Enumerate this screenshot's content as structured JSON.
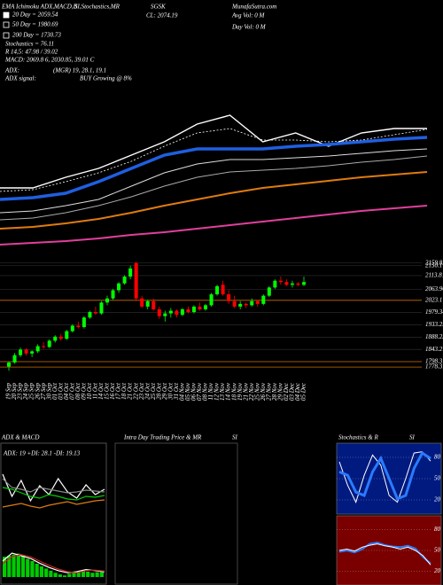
{
  "chart_data": [
    {
      "type": "line",
      "annotations": [
        "EMA Ichimoku ADX,MACD,B",
        "SI,Stochastics,MR",
        "SGSK",
        "MunafaSutra.com",
        "20 Day = 2059.54",
        "50 Day = 1980.69",
        "200 Day = 1730.73",
        "Stochastics = 76.11",
        "R 14,5: 47.98 / 39.02",
        "MACD: 2069.8 6, 2030.85, 39.01 C",
        "ADX:",
        "(MGR) 19, 28.1, 19.1",
        "ADX signal:",
        "BUY Growing @ 8%",
        "CL: 2074.19",
        "Avg Vol: 0 M",
        "Day Vol: 0 M"
      ],
      "ylim": [
        1600,
        2200
      ],
      "series": [
        {
          "color": "#ffffff",
          "width": 1.4,
          "values": [
            1776,
            1776,
            1800,
            1820,
            1850,
            1880,
            1920,
            1940,
            1880,
            1900,
            1870,
            1900,
            1910,
            1910
          ]
        },
        {
          "color": "#ffffff",
          "width": 0.8,
          "dash": true,
          "values": [
            1768,
            1772,
            1790,
            1810,
            1836,
            1870,
            1900,
            1910,
            1884,
            1884,
            1880,
            1884,
            1896,
            1908
          ]
        },
        {
          "color": "#1f5fe0",
          "width": 3.5,
          "values": [
            1750,
            1754,
            1764,
            1790,
            1820,
            1850,
            1864,
            1864,
            1864,
            1870,
            1874,
            1880,
            1886,
            1890
          ]
        },
        {
          "color": "#dddddd",
          "width": 1,
          "values": [
            1720,
            1724,
            1736,
            1750,
            1780,
            1810,
            1830,
            1840,
            1840,
            1844,
            1848,
            1854,
            1860,
            1864
          ]
        },
        {
          "color": "#aaaaaa",
          "width": 1,
          "values": [
            1704,
            1708,
            1720,
            1736,
            1756,
            1780,
            1800,
            1812,
            1816,
            1820,
            1826,
            1834,
            1840,
            1848
          ]
        },
        {
          "color": "#e07b10",
          "width": 2,
          "values": [
            1684,
            1688,
            1696,
            1706,
            1720,
            1736,
            1750,
            1764,
            1776,
            1784,
            1792,
            1800,
            1806,
            1812
          ]
        },
        {
          "color": "#e0409c",
          "width": 2,
          "values": [
            1648,
            1652,
            1656,
            1662,
            1670,
            1676,
            1684,
            1692,
            1700,
            1708,
            1716,
            1724,
            1730,
            1736
          ]
        }
      ]
    },
    {
      "type": "candlestick",
      "up_color": "#00ff00",
      "down_color": "#ff0000",
      "level_color": "#c86a00",
      "ylim": [
        1743,
        2198
      ],
      "yticks": [
        2159.82,
        2150.1,
        2113.81,
        2063.96,
        2023.1,
        1979.34,
        1933.25,
        1888.23,
        1843.27,
        1798.31,
        1778.31
      ],
      "levels": [
        2023.1,
        1798.31,
        1778.31
      ],
      "categories": [
        "19 Sep",
        "20 Sep",
        "23 Sep",
        "24 Sep",
        "25 Sep",
        "26 Sep",
        "27 Sep",
        "30 Sep",
        "01 Oct",
        "03 Oct",
        "04 Oct",
        "07 Oct",
        "08 Oct",
        "09 Oct",
        "10 Oct",
        "11 Oct",
        "14 Oct",
        "15 Oct",
        "16 Oct",
        "17 Oct",
        "18 Oct",
        "21 Oct",
        "22 Oct",
        "23 Oct",
        "24 Oct",
        "25 Oct",
        "28 Oct",
        "29 Oct",
        "30 Oct",
        "31 Oct",
        "04 Nov",
        "05 Nov",
        "06 Nov",
        "07 Nov",
        "08 Nov",
        "11 Nov",
        "12 Nov",
        "13 Nov",
        "14 Nov",
        "18 Nov",
        "19 Nov",
        "21 Nov",
        "22 Nov",
        "25 Nov",
        "26 Nov",
        "27 Nov",
        "28 Nov",
        "29 Nov",
        "02 Dec",
        "03 Dec",
        "04 Dec",
        "05 Dec"
      ],
      "open": [
        1780,
        1795,
        1822,
        1842,
        1828,
        1836,
        1855,
        1852,
        1875,
        1890,
        1882,
        1910,
        1930,
        1925,
        1960,
        1980,
        1975,
        2015,
        2030,
        2060,
        2085,
        2110,
        2160,
        2030,
        2000,
        2020,
        1990,
        1965,
        1975,
        1985,
        1970,
        1990,
        1980,
        2000,
        1990,
        2005,
        2045,
        2080,
        2045,
        2020,
        2000,
        2010,
        2005,
        2020,
        2010,
        2040,
        2070,
        2095,
        2090,
        2080,
        2085,
        2080
      ],
      "high": [
        1800,
        1830,
        1850,
        1848,
        1840,
        1862,
        1870,
        1880,
        1895,
        1900,
        1915,
        1935,
        1945,
        1965,
        1985,
        2000,
        2020,
        2040,
        2065,
        2090,
        2115,
        2150,
        2165,
        2040,
        2025,
        2030,
        2000,
        1985,
        1995,
        1990,
        1995,
        2000,
        2005,
        2015,
        2010,
        2050,
        2080,
        2095,
        2060,
        2040,
        2020,
        2015,
        2030,
        2025,
        2045,
        2075,
        2100,
        2110,
        2100,
        2095,
        2090,
        2110
      ],
      "low": [
        1765,
        1790,
        1815,
        1820,
        1815,
        1830,
        1845,
        1848,
        1868,
        1875,
        1878,
        1905,
        1920,
        1920,
        1955,
        1970,
        1970,
        2005,
        2025,
        2050,
        2080,
        2100,
        2020,
        1995,
        1990,
        1985,
        1955,
        1945,
        1960,
        1960,
        1965,
        1975,
        1975,
        1985,
        1985,
        2000,
        2040,
        2040,
        2010,
        1995,
        1990,
        1995,
        2000,
        2000,
        2005,
        2035,
        2065,
        2080,
        2075,
        2070,
        2075,
        2075
      ],
      "close": [
        1795,
        1822,
        1842,
        1828,
        1836,
        1855,
        1852,
        1875,
        1890,
        1882,
        1910,
        1930,
        1925,
        1960,
        1980,
        1975,
        2015,
        2030,
        2060,
        2085,
        2110,
        2140,
        2030,
        2000,
        2020,
        1990,
        1965,
        1975,
        1985,
        1970,
        1990,
        1980,
        2000,
        1990,
        2005,
        2045,
        2075,
        2045,
        2020,
        2000,
        2010,
        2005,
        2020,
        2010,
        2040,
        2070,
        2095,
        2090,
        2080,
        2085,
        2080,
        2090
      ]
    },
    {
      "type": "adx_macd",
      "title": "ADX & MACD",
      "label": "ADX: 19 +DI: 28.1 -DI: 19.13",
      "ylim": [
        0,
        60
      ],
      "series": [
        {
          "color": "#ffffff",
          "values": [
            45,
            20,
            38,
            15,
            32,
            22,
            40,
            25,
            18,
            33,
            22,
            28
          ]
        },
        {
          "color": "#888888",
          "values": [
            40,
            30,
            28,
            25,
            30,
            28,
            26,
            24,
            25,
            27,
            26,
            25
          ]
        },
        {
          "color": "#00cc00",
          "values": [
            30,
            28,
            24,
            20,
            18,
            22,
            20,
            17,
            16,
            20,
            19,
            21
          ]
        },
        {
          "color": "#e07b10",
          "values": [
            8,
            10,
            12,
            9,
            7,
            10,
            12,
            14,
            11,
            13,
            15,
            16
          ]
        }
      ],
      "macd_ylim": [
        -10,
        60
      ],
      "histogram": [
        38,
        40,
        42,
        44,
        40,
        34,
        30,
        25,
        20,
        16,
        12,
        8,
        5,
        3,
        6,
        8,
        10,
        12,
        10,
        8,
        9,
        10
      ],
      "macd_series": [
        {
          "color": "#ffffff",
          "values": [
            30,
            45,
            40,
            35,
            26,
            18,
            12,
            8,
            10,
            14,
            12,
            10
          ]
        },
        {
          "color": "#cc2222",
          "values": [
            25,
            38,
            42,
            38,
            30,
            22,
            15,
            10,
            8,
            12,
            13,
            11
          ]
        }
      ]
    },
    {
      "type": "empty",
      "title": "Intra Day Trading Price & MR",
      "subtitle": "SI"
    },
    {
      "type": "stochastics",
      "title": "Stochastics & R",
      "subtitle": "SI",
      "ylim": [
        0,
        100
      ],
      "yticks": [
        80,
        50,
        20
      ],
      "series": [
        {
          "color": "#ffffff",
          "width": 1,
          "values": [
            75,
            40,
            15,
            55,
            85,
            70,
            25,
            15,
            50,
            88,
            90,
            76
          ]
        },
        {
          "color": "#2a7bff",
          "width": 3,
          "values": [
            60,
            55,
            30,
            25,
            60,
            80,
            50,
            20,
            25,
            65,
            88,
            80
          ]
        }
      ],
      "lower_ylim": [
        0,
        100
      ],
      "lower_yticks": [
        80,
        50,
        20
      ],
      "lower_series": [
        {
          "color": "#2a7bff",
          "width": 2,
          "values": [
            48,
            50,
            47,
            52,
            60,
            62,
            58,
            56,
            55,
            57,
            53,
            40,
            30
          ]
        },
        {
          "color": "#ffffff",
          "width": 1,
          "values": [
            50,
            52,
            49,
            55,
            58,
            60,
            57,
            55,
            52,
            55,
            50,
            42,
            28
          ]
        }
      ]
    }
  ]
}
